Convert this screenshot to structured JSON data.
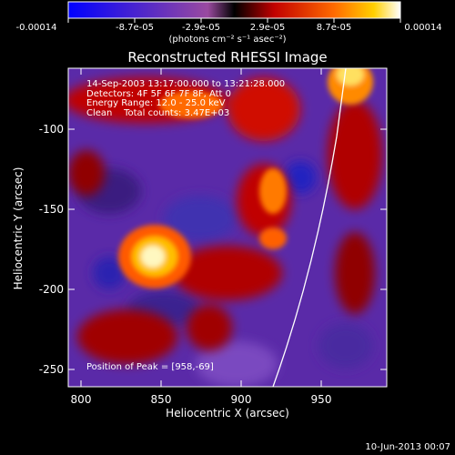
{
  "colorbar": {
    "ticks": [
      "-0.00014",
      "-8.7e-05",
      "-2.9e-05",
      "2.9e-05",
      "8.7e-05",
      "0.00014"
    ],
    "unit": "(photons cm⁻² s⁻¹ asec⁻²)"
  },
  "plot": {
    "title": "Reconstructed RHESSI Image",
    "xlabel": "Heliocentric X (arcsec)",
    "ylabel": "Heliocentric Y (arcsec)",
    "x_ticks": [
      "800",
      "850",
      "900",
      "950"
    ],
    "y_ticks": [
      "-100",
      "-150",
      "-200",
      "-250"
    ]
  },
  "annotation": {
    "line1": "14-Sep-2003 13:17:00.000 to 13:21:28.000",
    "line2": "Detectors: 4F 5F 6F 7F 8F, Att 0",
    "line3": "Energy Range: 12.0 - 25.0 keV",
    "line4": "Clean    Total counts: 3.47E+03",
    "peak": "Position of Peak = [958,-69]"
  },
  "footer": {
    "date": "10-Jun-2013 00:07"
  }
}
